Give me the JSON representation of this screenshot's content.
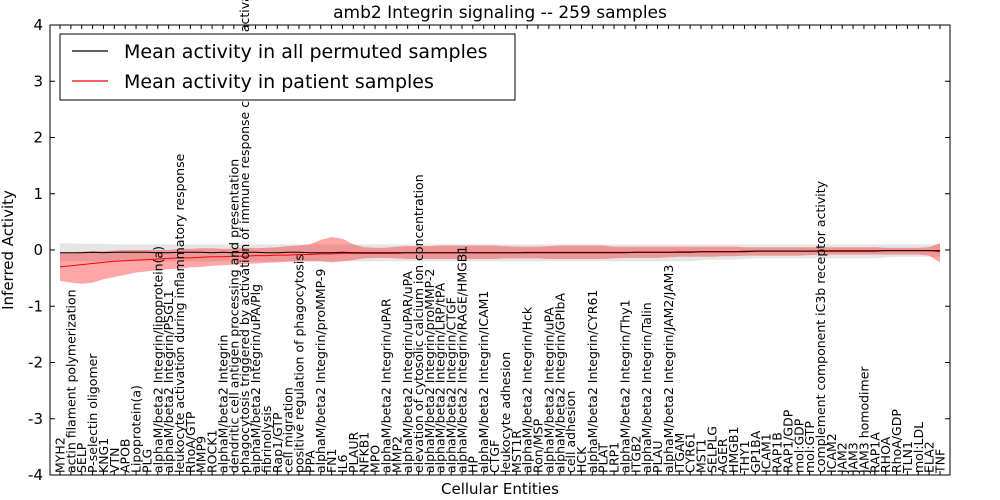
{
  "chart_data": {
    "type": "line",
    "title": "amb2 Integrin signaling -- 259 samples",
    "xlabel": "Cellular Entities",
    "ylabel": "Inferred Activity",
    "ylim": [
      -4,
      4
    ],
    "yticks": [
      -4,
      -3,
      -2,
      -1,
      0,
      1,
      2,
      3,
      4
    ],
    "legend": {
      "location": "top-left",
      "entries": [
        {
          "label": "Mean activity in all permuted samples",
          "color": "#000000"
        },
        {
          "label": "Mean activity in patient samples",
          "color": "#ff0000"
        }
      ]
    },
    "categories": [
      "MYH2",
      "actin filament polymerization",
      "SELP",
      "P-selectin oligomer",
      "KNG1",
      "VTN",
      "APOB",
      "Lipoprotein(a)",
      "PLG",
      "alphaM/beta2 Integrin/lipoprotein(a)",
      "alphaM/beta2 Integrin/PSGL1",
      "leukocyte activation during inflammatory response",
      "RhoA/GTP",
      "MMP9",
      "ROCK1",
      "alphaM/beta2 Integrin",
      "dendritic cell antigen processing and presentation",
      "phagocytosis triggered by activation of immune response cell surface activating receptor",
      "alphaM/beta2 Integrin/uPA/Plg",
      "fibrinolysis",
      "Rap1/GTP",
      "cell migration",
      "positive regulation of phagocytosis",
      "PPA",
      "alphaM/beta2 Integrin/proMMP-9",
      "FN1",
      "IL6",
      "PLAUR",
      "NFKB1",
      "MPO",
      "alphaM/beta2 Integrin/uPAR",
      "MMP2",
      "alphaM/beta2 Integrin/uPAR/uPA",
      "elevation of cytosolic calcium ion concentration",
      "alphaM/beta2 Integrin/proMMP-2",
      "alphaM/beta2 Integrin/LRP/tPA",
      "alphaM/beta2 Integrin/CTGF",
      "alphaM/beta2 Integrin/RAGE/HMGB1",
      "HP",
      "alphaM/beta2 Integrin/ICAM1",
      "CTGF",
      "leukocyte adhesion",
      "MST1R",
      "alphaM/beta2 Integrin/Hck",
      "Ron/MSP",
      "alphaM/beta2 Integrin/uPA",
      "alphaM/beta2 Integrin/GPIbA",
      "cell adhesion",
      "HCK",
      "alphaM/beta2 Integrin/CYR61",
      "PLAT",
      "LRP1",
      "alphaM/beta2 Integrin/Thy1",
      "ITGB2",
      "alphaM/beta2 Integrin/Talin",
      "PLAU",
      "alphaM/beta2 Integrin/JAM2/JAM3",
      "ITGAM",
      "CYR61",
      "MST1",
      "SELPLG",
      "AGER",
      "HMGB1",
      "THY1",
      "GP1BA",
      "ICAM1",
      "RAP1B",
      "RAP1/GDP",
      "mol:GDP",
      "mol:GTP",
      "complement component iC3b receptor activity",
      "ICAM2",
      "JAM2",
      "JAM3",
      "JAM3 homodimer",
      "RAP1A",
      "RHOA",
      "RhoA/GDP",
      "TLN1",
      "mol:LDL",
      "ELA2",
      "TNF"
    ],
    "series": [
      {
        "name": "Mean activity in all permuted samples",
        "color": "#000000",
        "values": [
          -0.05,
          -0.05,
          -0.05,
          -0.04,
          -0.05,
          -0.04,
          -0.04,
          -0.04,
          -0.04,
          -0.05,
          -0.05,
          -0.04,
          -0.04,
          -0.04,
          -0.05,
          -0.04,
          -0.05,
          -0.04,
          -0.04,
          -0.05,
          -0.05,
          -0.04,
          -0.04,
          -0.05,
          -0.05,
          -0.05,
          -0.04,
          -0.05,
          -0.05,
          -0.05,
          -0.05,
          -0.05,
          -0.05,
          -0.05,
          -0.05,
          -0.05,
          -0.05,
          -0.05,
          -0.05,
          -0.05,
          -0.05,
          -0.05,
          -0.05,
          -0.05,
          -0.05,
          -0.05,
          -0.05,
          -0.05,
          -0.05,
          -0.05,
          -0.05,
          -0.05,
          -0.05,
          -0.04,
          -0.04,
          -0.04,
          -0.04,
          -0.04,
          -0.04,
          -0.03,
          -0.03,
          -0.03,
          -0.03,
          -0.03,
          -0.02,
          -0.02,
          -0.02,
          -0.02,
          -0.02,
          -0.02,
          -0.02,
          -0.02,
          -0.02,
          -0.02,
          -0.02,
          -0.02,
          -0.01,
          -0.01,
          -0.01,
          -0.01,
          -0.01,
          -0.01
        ],
        "band_upper": [
          0.12,
          0.12,
          0.11,
          0.11,
          0.11,
          0.1,
          0.1,
          0.1,
          0.1,
          0.1,
          0.1,
          0.1,
          0.1,
          0.1,
          0.1,
          0.1,
          0.1,
          0.1,
          0.1,
          0.1,
          0.1,
          0.1,
          0.1,
          0.1,
          0.1,
          0.1,
          0.1,
          0.1,
          0.1,
          0.1,
          0.1,
          0.1,
          0.1,
          0.1,
          0.1,
          0.1,
          0.1,
          0.1,
          0.1,
          0.1,
          0.1,
          0.1,
          0.1,
          0.1,
          0.1,
          0.1,
          0.1,
          0.1,
          0.1,
          0.1,
          0.1,
          0.1,
          0.1,
          0.1,
          0.1,
          0.1,
          0.1,
          0.1,
          0.1,
          0.1,
          0.1,
          0.1,
          0.1,
          0.1,
          0.1,
          0.1,
          0.1,
          0.1,
          0.1,
          0.1,
          0.1,
          0.1,
          0.1,
          0.1,
          0.1,
          0.1,
          0.1,
          0.1,
          0.1,
          0.1,
          0.1,
          0.1
        ],
        "band_lower": [
          -0.2,
          -0.2,
          -0.2,
          -0.2,
          -0.2,
          -0.2,
          -0.2,
          -0.2,
          -0.2,
          -0.2,
          -0.2,
          -0.2,
          -0.2,
          -0.2,
          -0.2,
          -0.2,
          -0.2,
          -0.2,
          -0.2,
          -0.2,
          -0.2,
          -0.2,
          -0.2,
          -0.2,
          -0.2,
          -0.2,
          -0.2,
          -0.2,
          -0.2,
          -0.2,
          -0.2,
          -0.2,
          -0.2,
          -0.2,
          -0.2,
          -0.2,
          -0.2,
          -0.2,
          -0.2,
          -0.2,
          -0.2,
          -0.2,
          -0.2,
          -0.2,
          -0.2,
          -0.2,
          -0.2,
          -0.2,
          -0.2,
          -0.2,
          -0.2,
          -0.2,
          -0.2,
          -0.2,
          -0.2,
          -0.2,
          -0.2,
          -0.2,
          -0.2,
          -0.18,
          -0.17,
          -0.17,
          -0.17,
          -0.16,
          -0.15,
          -0.15,
          -0.15,
          -0.15,
          -0.15,
          -0.15,
          -0.15,
          -0.15,
          -0.15,
          -0.15,
          -0.15,
          -0.15,
          -0.13,
          -0.12,
          -0.12,
          -0.12,
          -0.12,
          -0.12
        ]
      },
      {
        "name": "Mean activity in patient samples",
        "color": "#ff0000",
        "values": [
          -0.3,
          -0.28,
          -0.26,
          -0.24,
          -0.22,
          -0.2,
          -0.19,
          -0.18,
          -0.17,
          -0.16,
          -0.15,
          -0.14,
          -0.14,
          -0.13,
          -0.12,
          -0.12,
          -0.11,
          -0.11,
          -0.1,
          -0.1,
          -0.09,
          -0.09,
          -0.08,
          -0.08,
          -0.07,
          -0.07,
          -0.06,
          -0.06,
          -0.06,
          -0.06,
          -0.06,
          -0.06,
          -0.05,
          -0.05,
          -0.05,
          -0.05,
          -0.05,
          -0.05,
          -0.05,
          -0.05,
          -0.05,
          -0.05,
          -0.05,
          -0.04,
          -0.04,
          -0.04,
          -0.04,
          -0.04,
          -0.04,
          -0.04,
          -0.04,
          -0.04,
          -0.04,
          -0.04,
          -0.04,
          -0.04,
          -0.04,
          -0.03,
          -0.03,
          -0.03,
          -0.03,
          -0.03,
          -0.03,
          -0.02,
          -0.02,
          -0.02,
          -0.02,
          -0.02,
          -0.02,
          -0.02,
          -0.01,
          -0.01,
          -0.01,
          -0.01,
          -0.01,
          -0.01,
          -0.01,
          -0.01,
          -0.01,
          -0.01,
          -0.01,
          -0.03
        ],
        "band_upper": [
          -0.05,
          -0.05,
          -0.03,
          -0.02,
          -0.02,
          -0.01,
          0.0,
          0.0,
          0.0,
          0.0,
          0.0,
          0.02,
          0.02,
          0.03,
          0.03,
          0.02,
          0.02,
          0.04,
          0.03,
          0.04,
          0.05,
          0.07,
          0.08,
          0.1,
          0.18,
          0.23,
          0.2,
          0.1,
          0.05,
          0.04,
          0.04,
          0.06,
          0.07,
          0.07,
          0.07,
          0.08,
          0.08,
          0.08,
          0.08,
          0.08,
          0.08,
          0.07,
          0.06,
          0.06,
          0.06,
          0.07,
          0.08,
          0.08,
          0.08,
          0.08,
          0.08,
          0.06,
          0.06,
          0.06,
          0.06,
          0.06,
          0.06,
          0.06,
          0.06,
          0.06,
          0.06,
          0.06,
          0.06,
          0.05,
          0.05,
          0.05,
          0.05,
          0.05,
          0.05,
          0.05,
          0.05,
          0.05,
          0.05,
          0.05,
          0.05,
          0.05,
          0.04,
          0.04,
          0.04,
          0.04,
          0.05,
          0.12
        ],
        "band_lower": [
          -0.55,
          -0.58,
          -0.6,
          -0.58,
          -0.52,
          -0.48,
          -0.44,
          -0.4,
          -0.38,
          -0.36,
          -0.34,
          -0.33,
          -0.31,
          -0.3,
          -0.28,
          -0.27,
          -0.26,
          -0.25,
          -0.24,
          -0.23,
          -0.22,
          -0.21,
          -0.2,
          -0.2,
          -0.2,
          -0.22,
          -0.2,
          -0.18,
          -0.15,
          -0.14,
          -0.14,
          -0.15,
          -0.16,
          -0.16,
          -0.16,
          -0.16,
          -0.16,
          -0.16,
          -0.16,
          -0.16,
          -0.16,
          -0.15,
          -0.15,
          -0.15,
          -0.15,
          -0.16,
          -0.16,
          -0.16,
          -0.16,
          -0.16,
          -0.16,
          -0.15,
          -0.14,
          -0.14,
          -0.14,
          -0.14,
          -0.13,
          -0.12,
          -0.12,
          -0.12,
          -0.12,
          -0.11,
          -0.11,
          -0.1,
          -0.1,
          -0.1,
          -0.1,
          -0.1,
          -0.1,
          -0.09,
          -0.08,
          -0.08,
          -0.08,
          -0.08,
          -0.08,
          -0.08,
          -0.08,
          -0.08,
          -0.08,
          -0.08,
          -0.1,
          -0.22
        ]
      }
    ]
  }
}
